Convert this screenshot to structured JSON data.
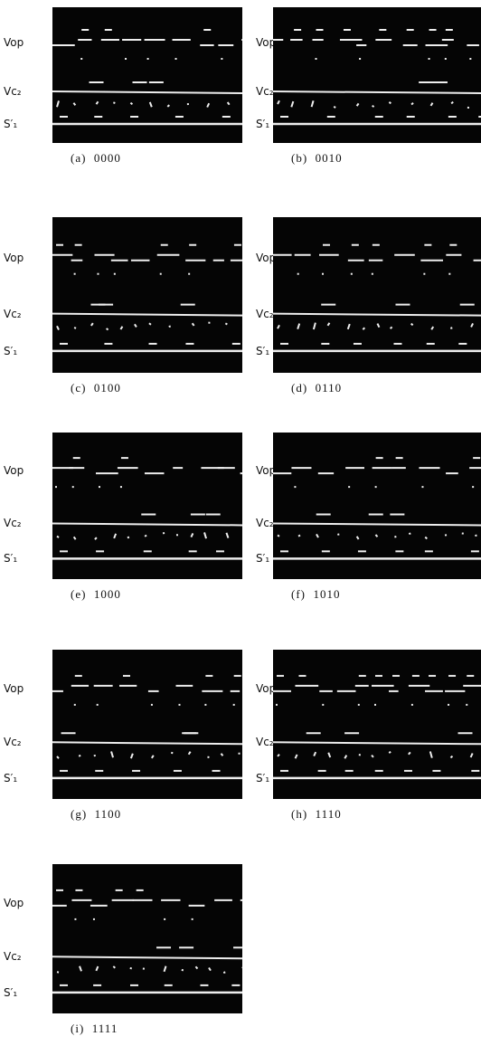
{
  "panels": [
    {
      "caption": "(a)  0000",
      "labels": [
        "Vop",
        "Vc₂",
        "S′₁"
      ]
    },
    {
      "caption": "(b)  0010",
      "labels": [
        "Vop",
        "Vc₂",
        "S′₁"
      ]
    },
    {
      "caption": "(c)  0100",
      "labels": [
        "Vop",
        "Vc₂",
        "S′₁"
      ]
    },
    {
      "caption": "(d)  0110",
      "labels": [
        "Vop",
        "Vc₂",
        "S′₁"
      ]
    },
    {
      "caption": "(e)  1000",
      "labels": [
        "Vop",
        "Vc₂",
        "S′₁"
      ]
    },
    {
      "caption": "(f)  1010",
      "labels": [
        "Vop",
        "Vc₂",
        "S′₁"
      ]
    },
    {
      "caption": "(g)  1100",
      "labels": [
        "Vop",
        "Vc₂",
        "S′₁"
      ]
    },
    {
      "caption": "(h)  1110",
      "labels": [
        "Vop",
        "Vc₂",
        "S′₁"
      ]
    },
    {
      "caption": "(i)  1111",
      "labels": [
        "Vop",
        "Vc₂",
        "S′₁"
      ]
    }
  ]
}
